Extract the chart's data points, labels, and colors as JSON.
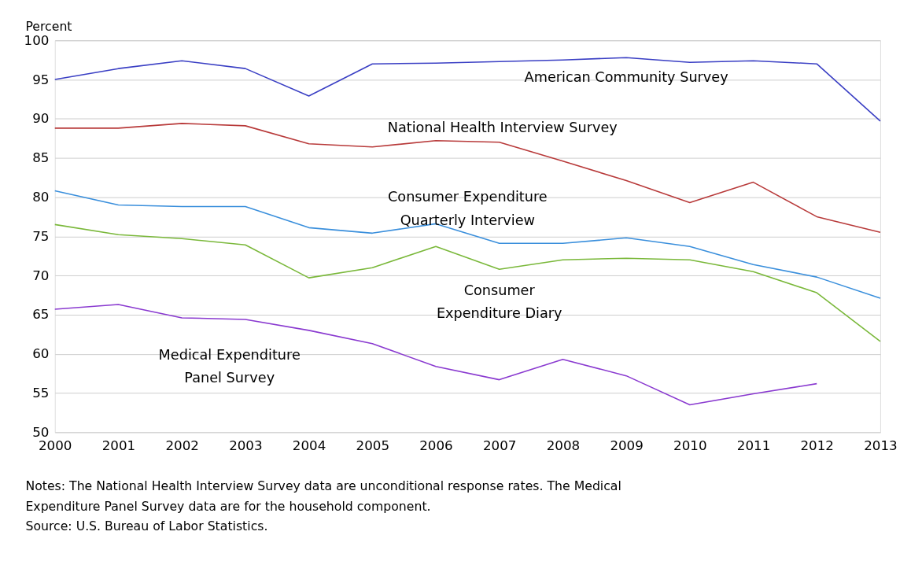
{
  "chart_data": {
    "type": "line",
    "ylabel": "Percent",
    "x": [
      2000,
      2001,
      2002,
      2003,
      2004,
      2005,
      2006,
      2007,
      2008,
      2009,
      2010,
      2011,
      2012,
      2013
    ],
    "xlim": [
      2000,
      2013
    ],
    "xticks": [
      2000,
      2001,
      2002,
      2003,
      2004,
      2005,
      2006,
      2007,
      2008,
      2009,
      2010,
      2011,
      2012,
      2013
    ],
    "ylim": [
      50,
      100
    ],
    "yticks": [
      50,
      55,
      60,
      65,
      70,
      75,
      80,
      85,
      90,
      95,
      100
    ],
    "grid": "y",
    "legend": false,
    "marker": "none",
    "line_style": "solid",
    "series": [
      {
        "name": "American Community Survey",
        "color": "#3a3fc4",
        "values": [
          95.0,
          96.4,
          97.4,
          96.4,
          92.9,
          97.0,
          97.1,
          97.3,
          97.5,
          97.8,
          97.2,
          97.4,
          97.0,
          89.7
        ]
      },
      {
        "name": "National Health Interview Survey",
        "color": "#b83a3a",
        "values": [
          88.8,
          88.8,
          89.4,
          89.1,
          86.8,
          86.4,
          87.2,
          87.0,
          84.6,
          82.1,
          79.3,
          81.9,
          77.5,
          75.5
        ]
      },
      {
        "name": "Consumer Expenditure\nQuarterly Interview",
        "color": "#3a8fdc",
        "values": [
          80.8,
          79.0,
          78.8,
          78.8,
          76.1,
          75.4,
          76.6,
          74.1,
          74.1,
          74.8,
          73.7,
          71.4,
          69.8,
          67.1
        ]
      },
      {
        "name": "Consumer\nExpenditure Diary",
        "color": "#7ab83a",
        "values": [
          76.5,
          75.2,
          74.7,
          73.9,
          69.7,
          71.0,
          73.7,
          70.8,
          72.0,
          72.2,
          72.0,
          70.5,
          67.8,
          61.6
        ]
      },
      {
        "name": "Medical Expenditure\nPanel Survey",
        "color": "#8a3ad0",
        "values": [
          65.7,
          66.3,
          64.6,
          64.4,
          63.0,
          61.3,
          58.4,
          56.7,
          59.3,
          57.2,
          53.5,
          54.9,
          56.2,
          null
        ]
      }
    ],
    "annotations": [
      "Notes: The National Health Interview Survey data are unconditional response rates. The Medical\nExpenditure Panel Survey data are for the household component.",
      "Source: U.S. Bureau of Labor Statistics."
    ]
  }
}
